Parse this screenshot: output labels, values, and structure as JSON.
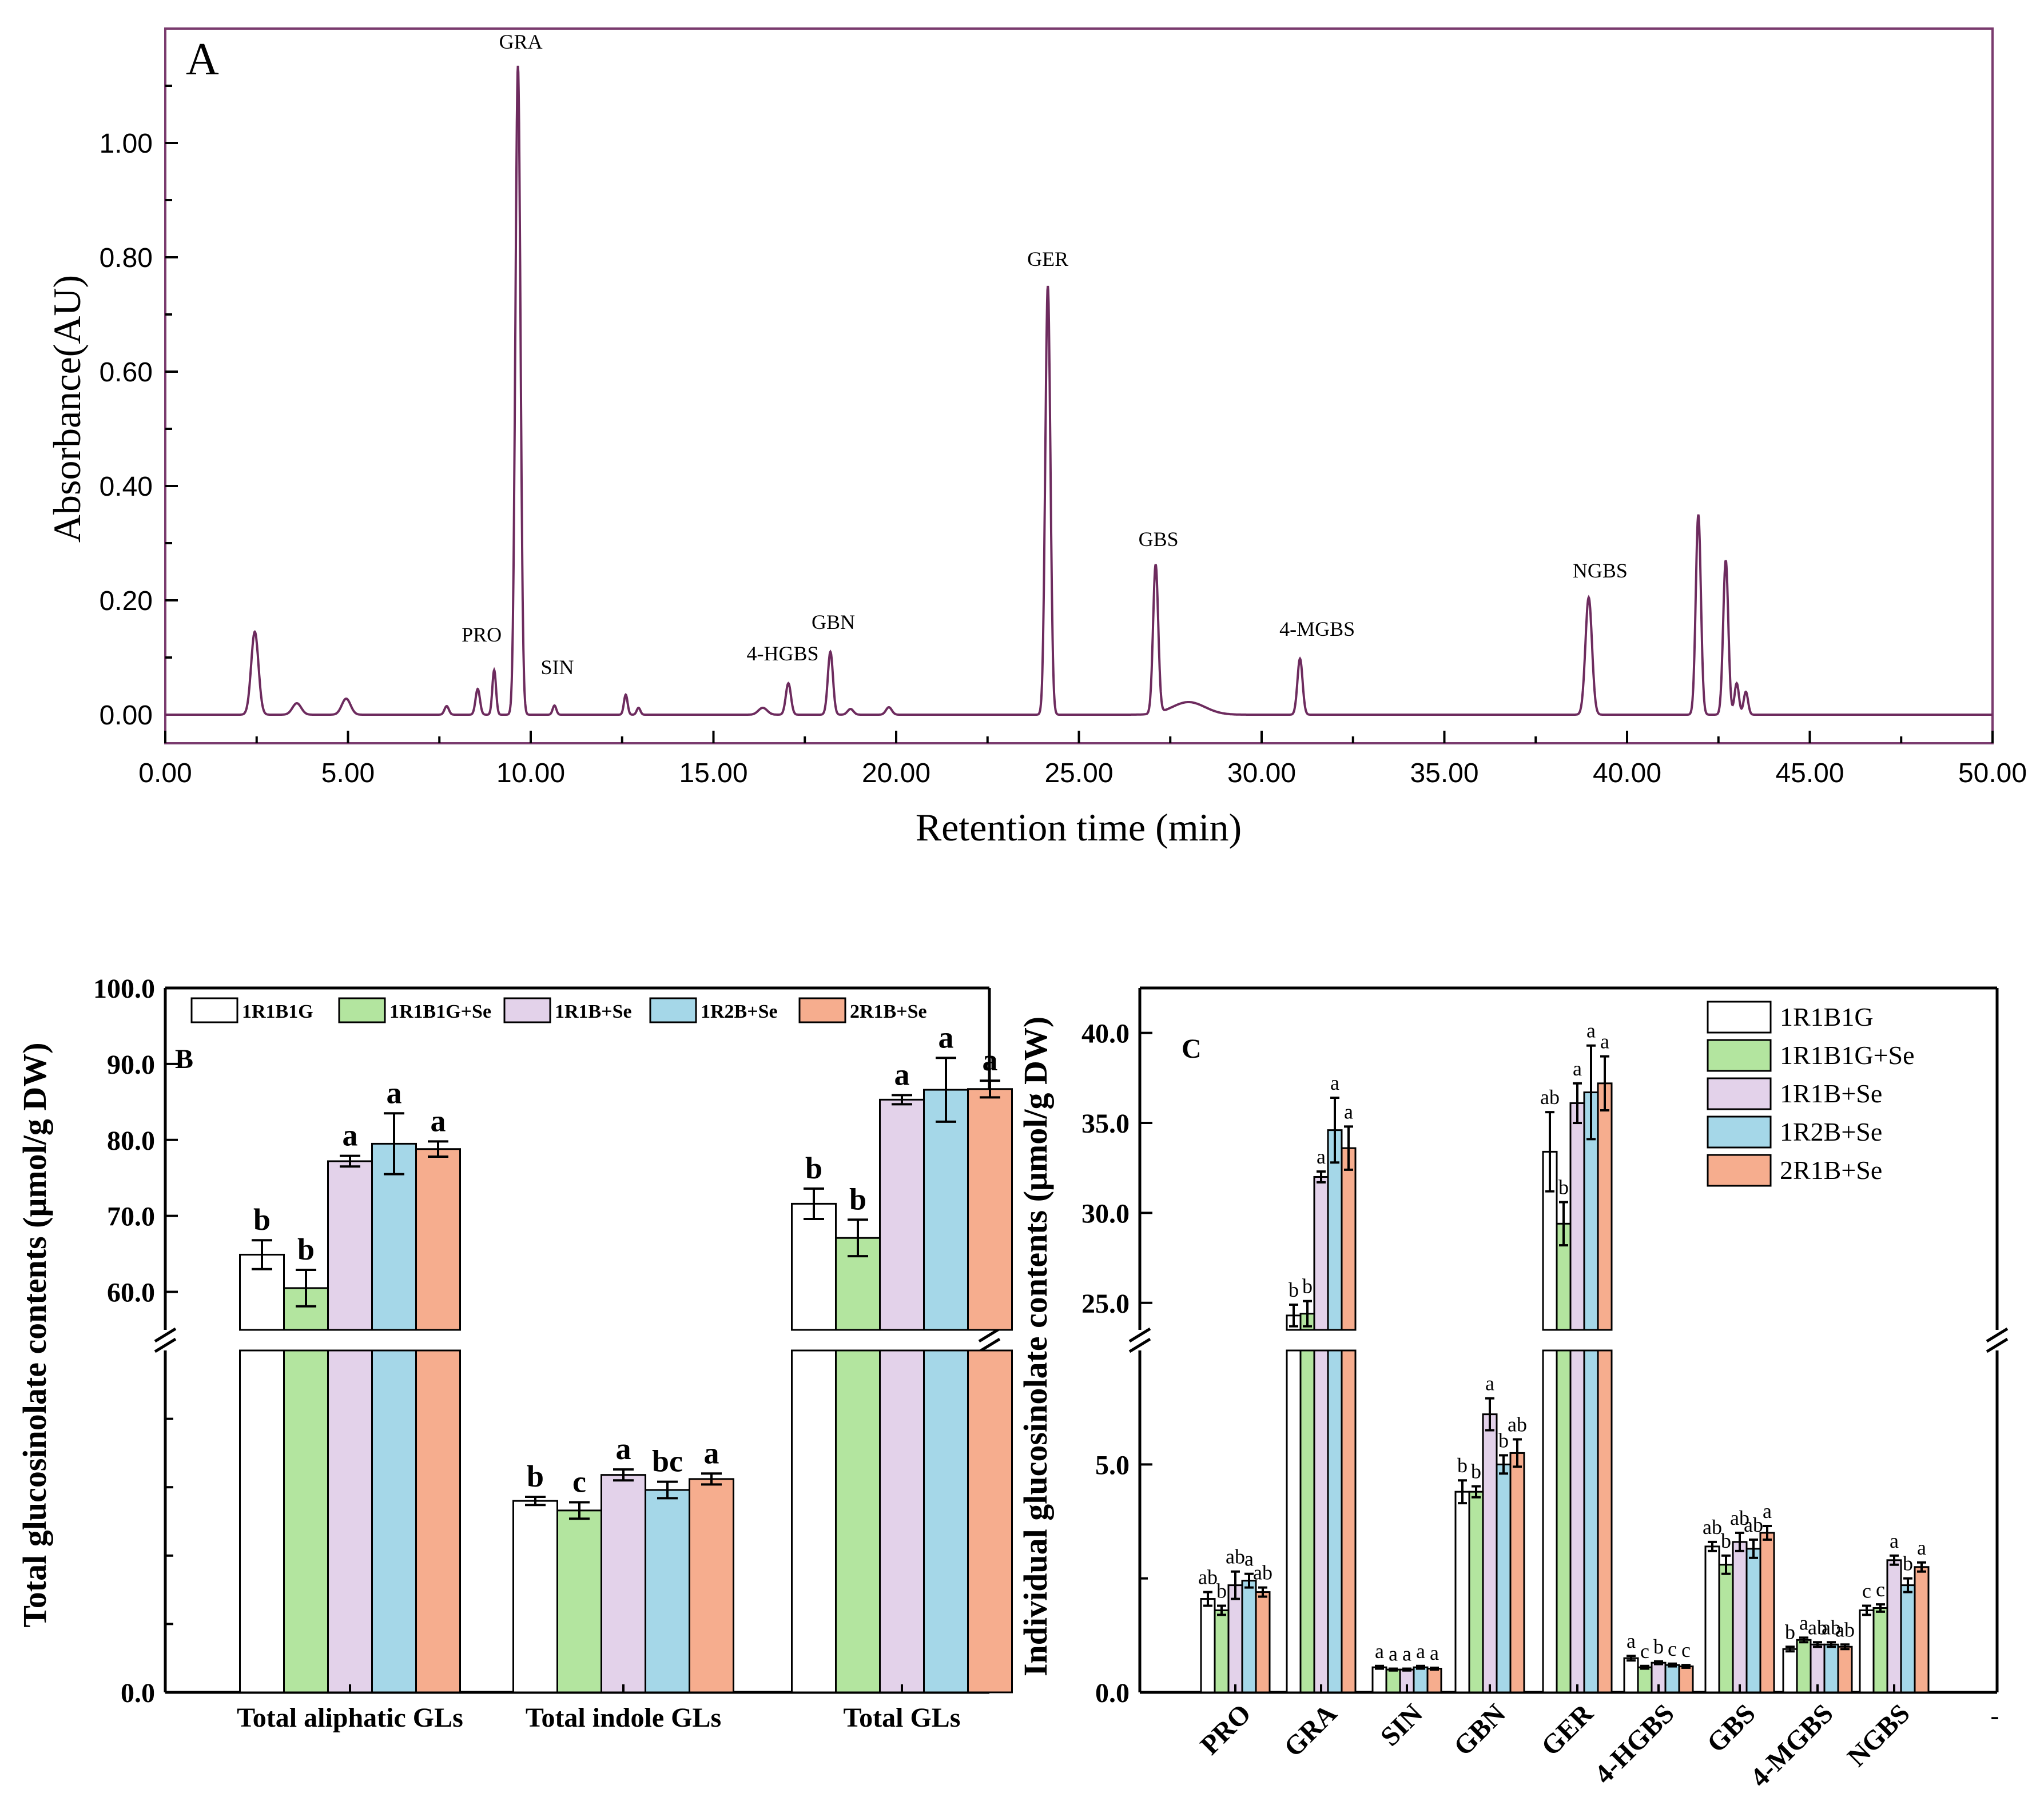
{
  "colors": {
    "trace": "#6d2b5e",
    "series": [
      "#ffffff",
      "#b3e59f",
      "#e3d2ea",
      "#a5d7e8",
      "#f6ad8e"
    ]
  },
  "legend_labels": [
    "1R1B1G",
    "1R1B1G+Se",
    "1R1B+Se",
    "1R2B+Se",
    "2R1B+Se"
  ],
  "chart_data": [
    {
      "id": "A",
      "panel_label": "A",
      "type": "line",
      "title": "",
      "xlabel": "Retention time (min)",
      "ylabel": "Absorbance(AU)",
      "xlim": [
        0,
        50
      ],
      "ylim": [
        -0.05,
        1.2
      ],
      "x_ticks": [
        0,
        5,
        10,
        15,
        20,
        25,
        30,
        35,
        40,
        45,
        50
      ],
      "x_tick_labels": [
        "0.00",
        "5.00",
        "10.00",
        "15.00",
        "20.00",
        "25.00",
        "30.00",
        "35.00",
        "40.00",
        "45.00",
        "50.00"
      ],
      "y_ticks": [
        0,
        0.2,
        0.4,
        0.6,
        0.8,
        1.0
      ],
      "y_tick_labels": [
        "0.00",
        "0.20",
        "0.40",
        "0.60",
        "0.80",
        "1.00"
      ],
      "peaks": [
        {
          "t": 2.45,
          "h": 0.145,
          "w": 0.1
        },
        {
          "t": 3.6,
          "h": 0.02,
          "w": 0.12
        },
        {
          "t": 4.95,
          "h": 0.028,
          "w": 0.12
        },
        {
          "t": 7.7,
          "h": 0.015,
          "w": 0.06
        },
        {
          "t": 8.55,
          "h": 0.045,
          "w": 0.06
        },
        {
          "t": 9.0,
          "h": 0.078,
          "w": 0.05,
          "label": "PRO"
        },
        {
          "t": 9.65,
          "h": 1.135,
          "w": 0.07,
          "label": "GRA"
        },
        {
          "t": 10.65,
          "h": 0.016,
          "w": 0.05,
          "label": "SIN"
        },
        {
          "t": 12.6,
          "h": 0.035,
          "w": 0.05
        },
        {
          "t": 12.95,
          "h": 0.012,
          "w": 0.05
        },
        {
          "t": 16.35,
          "h": 0.012,
          "w": 0.12
        },
        {
          "t": 17.05,
          "h": 0.055,
          "w": 0.07,
          "label": "4-HGBS"
        },
        {
          "t": 18.2,
          "h": 0.11,
          "w": 0.07,
          "label": "GBN"
        },
        {
          "t": 18.75,
          "h": 0.01,
          "w": 0.08
        },
        {
          "t": 19.8,
          "h": 0.013,
          "w": 0.08
        },
        {
          "t": 24.15,
          "h": 0.75,
          "w": 0.07,
          "label": "GER"
        },
        {
          "t": 27.1,
          "h": 0.26,
          "w": 0.07,
          "label": "GBS"
        },
        {
          "t": 28.0,
          "h": 0.022,
          "w": 0.45
        },
        {
          "t": 31.05,
          "h": 0.098,
          "w": 0.07,
          "label": "4-MGBS"
        },
        {
          "t": 38.95,
          "h": 0.205,
          "w": 0.09,
          "label": "NGBS"
        },
        {
          "t": 41.95,
          "h": 0.35,
          "w": 0.07
        },
        {
          "t": 42.7,
          "h": 0.27,
          "w": 0.07
        },
        {
          "t": 43.0,
          "h": 0.055,
          "w": 0.06
        },
        {
          "t": 43.25,
          "h": 0.04,
          "w": 0.06
        }
      ]
    },
    {
      "id": "B",
      "panel_label": "B",
      "type": "bar",
      "title": "",
      "xlabel": "",
      "ylabel": "Total glucosinolate contents (μmol/g DW)",
      "axis_break": {
        "lower": [
          0,
          25
        ],
        "upper": [
          55,
          100
        ]
      },
      "upper_ticks": [
        60,
        70,
        80,
        90,
        100
      ],
      "upper_tick_labels": [
        "60.0",
        "70.0",
        "80.0",
        "90.0",
        "100.0"
      ],
      "lower_ticks": [
        0
      ],
      "lower_tick_labels": [
        "0.0"
      ],
      "lower_minor_ticks": [
        5,
        10,
        15,
        20
      ],
      "categories": [
        "Total aliphatic GLs",
        "Total indole  GLs",
        "Total GLs"
      ],
      "series": [
        {
          "name": "1R1B1G",
          "values": [
            64.9,
            14.0,
            71.6
          ],
          "errors": [
            1.9,
            0.3,
            2.0
          ],
          "letters": [
            "b",
            "b",
            "b"
          ]
        },
        {
          "name": "1R1B1G+Se",
          "values": [
            60.5,
            13.3,
            67.1
          ],
          "errors": [
            2.4,
            0.6,
            2.4
          ],
          "letters": [
            "b",
            "c",
            "b"
          ]
        },
        {
          "name": "1R1B+Se",
          "values": [
            77.2,
            15.9,
            85.3
          ],
          "errors": [
            0.7,
            0.4,
            0.6
          ],
          "letters": [
            "a",
            "a",
            "a"
          ]
        },
        {
          "name": "1R2B+Se",
          "values": [
            79.5,
            14.8,
            86.6
          ],
          "errors": [
            4.0,
            0.6,
            4.2
          ],
          "letters": [
            "a",
            "bc",
            "a"
          ]
        },
        {
          "name": "2R1B+Se",
          "values": [
            78.8,
            15.6,
            86.7
          ],
          "errors": [
            1.0,
            0.4,
            1.1
          ],
          "letters": [
            "a",
            "a",
            "a"
          ]
        }
      ]
    },
    {
      "id": "C",
      "panel_label": "C",
      "type": "bar",
      "title": "",
      "xlabel": "",
      "ylabel": "Individual glucosinolate contents (μmol/g DW)",
      "axis_break": {
        "lower": [
          0,
          7.5
        ],
        "upper": [
          23.5,
          42.5
        ]
      },
      "upper_ticks": [
        25,
        30,
        35,
        40
      ],
      "upper_tick_labels": [
        "25.0",
        "30.0",
        "35.0",
        "40.0"
      ],
      "lower_ticks": [
        0,
        5
      ],
      "lower_tick_labels": [
        "0.0",
        "5.0"
      ],
      "lower_minor_ticks": [
        2.5
      ],
      "trailing_tick_label": "-",
      "categories": [
        "PRO",
        "GRA",
        "SIN",
        "GBN",
        "GER",
        "4-HGBS",
        "GBS",
        "4-MGBS",
        "NGBS"
      ],
      "series": [
        {
          "name": "1R1B1G",
          "values": [
            2.05,
            24.3,
            0.55,
            4.4,
            33.4,
            0.75,
            3.2,
            0.95,
            1.8
          ],
          "errors": [
            0.15,
            0.6,
            0.03,
            0.25,
            2.2,
            0.05,
            0.1,
            0.05,
            0.1
          ],
          "letters": [
            "ab",
            "b",
            "a",
            "b",
            "ab",
            "a",
            "ab",
            "b",
            "c"
          ]
        },
        {
          "name": "1R1B1G+Se",
          "values": [
            1.8,
            24.4,
            0.5,
            4.4,
            29.4,
            0.55,
            2.8,
            1.15,
            1.85
          ],
          "errors": [
            0.1,
            0.7,
            0.02,
            0.12,
            1.2,
            0.03,
            0.2,
            0.05,
            0.08
          ],
          "letters": [
            "b",
            "b",
            "a",
            "b",
            "b",
            "c",
            "b",
            "a",
            "c"
          ]
        },
        {
          "name": "1R1B+Se",
          "values": [
            2.35,
            32.0,
            0.5,
            6.1,
            36.1,
            0.65,
            3.3,
            1.05,
            2.9
          ],
          "errors": [
            0.3,
            0.3,
            0.02,
            0.35,
            1.1,
            0.03,
            0.2,
            0.05,
            0.1
          ],
          "letters": [
            "ab",
            "a",
            "a",
            "a",
            "a",
            "b",
            "ab",
            "ab",
            "a"
          ]
        },
        {
          "name": "1R2B+Se",
          "values": [
            2.45,
            34.6,
            0.55,
            5.0,
            36.7,
            0.6,
            3.15,
            1.05,
            2.35
          ],
          "errors": [
            0.15,
            1.8,
            0.03,
            0.2,
            2.6,
            0.03,
            0.2,
            0.05,
            0.15
          ],
          "letters": [
            "a",
            "a",
            "a",
            "b",
            "a",
            "c",
            "ab",
            "ab",
            "b"
          ]
        },
        {
          "name": "2R1B+Se",
          "values": [
            2.2,
            33.6,
            0.52,
            5.25,
            37.2,
            0.57,
            3.5,
            1.0,
            2.75
          ],
          "errors": [
            0.1,
            1.2,
            0.02,
            0.3,
            1.5,
            0.03,
            0.15,
            0.05,
            0.1
          ],
          "letters": [
            "ab",
            "a",
            "a",
            "ab",
            "a",
            "c",
            "a",
            "ab",
            "a"
          ]
        }
      ]
    }
  ]
}
